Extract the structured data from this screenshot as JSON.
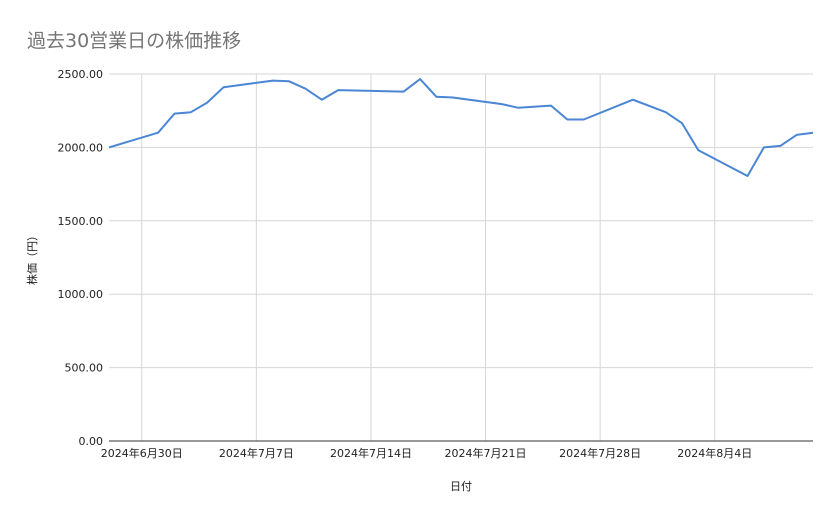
{
  "chart_data": {
    "type": "line",
    "title": "過去30営業日の株価推移",
    "xlabel": "日付",
    "ylabel": "株価（円）",
    "ylim": [
      0,
      2500
    ],
    "y_ticks": [
      "0.00",
      "500.00",
      "1000.00",
      "1500.00",
      "2000.00",
      "2500.00"
    ],
    "x_tick_labels": [
      {
        "date": "2024-06-30",
        "label": "2024年6月30日"
      },
      {
        "date": "2024-07-07",
        "label": "2024年7月7日"
      },
      {
        "date": "2024-07-14",
        "label": "2024年7月14日"
      },
      {
        "date": "2024-07-21",
        "label": "2024年7月21日"
      },
      {
        "date": "2024-07-28",
        "label": "2024年7月28日"
      },
      {
        "date": "2024-08-04",
        "label": "2024年8月4日"
      }
    ],
    "xlim": [
      "2024-06-28",
      "2024-08-09"
    ],
    "grid": true,
    "line_color": "#4a86d4",
    "series": [
      {
        "points": [
          {
            "x": "2024-06-28",
            "y": 2000
          },
          {
            "x": "2024-07-01",
            "y": 2100
          },
          {
            "x": "2024-07-02",
            "y": 2230
          },
          {
            "x": "2024-07-03",
            "y": 2240
          },
          {
            "x": "2024-07-04",
            "y": 2305
          },
          {
            "x": "2024-07-05",
            "y": 2410
          },
          {
            "x": "2024-07-08",
            "y": 2455
          },
          {
            "x": "2024-07-09",
            "y": 2450
          },
          {
            "x": "2024-07-10",
            "y": 2400
          },
          {
            "x": "2024-07-11",
            "y": 2325
          },
          {
            "x": "2024-07-12",
            "y": 2390
          },
          {
            "x": "2024-07-16",
            "y": 2380
          },
          {
            "x": "2024-07-17",
            "y": 2465
          },
          {
            "x": "2024-07-18",
            "y": 2345
          },
          {
            "x": "2024-07-19",
            "y": 2340
          },
          {
            "x": "2024-07-22",
            "y": 2295
          },
          {
            "x": "2024-07-23",
            "y": 2270
          },
          {
            "x": "2024-07-25",
            "y": 2285
          },
          {
            "x": "2024-07-26",
            "y": 2190
          },
          {
            "x": "2024-07-27",
            "y": 2190
          },
          {
            "x": "2024-07-30",
            "y": 2325
          },
          {
            "x": "2024-08-01",
            "y": 2240
          },
          {
            "x": "2024-08-02",
            "y": 2165
          },
          {
            "x": "2024-08-03",
            "y": 1980
          },
          {
            "x": "2024-08-06",
            "y": 1805
          },
          {
            "x": "2024-08-07",
            "y": 2000
          },
          {
            "x": "2024-08-08",
            "y": 2010
          },
          {
            "x": "2024-08-09",
            "y": 2085
          },
          {
            "x": "2024-08-10",
            "y": 2100
          }
        ]
      }
    ]
  }
}
